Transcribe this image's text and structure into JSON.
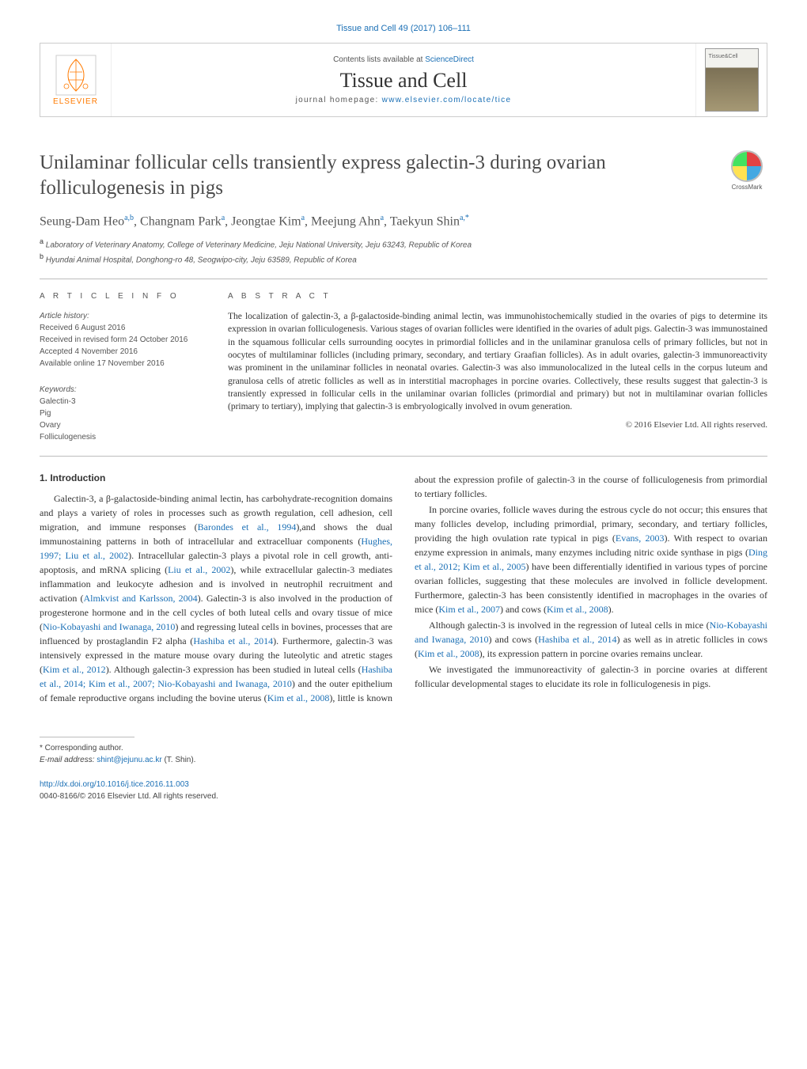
{
  "top_link": "Tissue and Cell 49 (2017) 106–111",
  "header": {
    "publisher_label": "ELSEVIER",
    "contents_prefix": "Contents lists available at ",
    "contents_link": "ScienceDirect",
    "journal_name": "Tissue and Cell",
    "homepage_prefix": "journal homepage: ",
    "homepage_link": "www.elsevier.com/locate/tice",
    "cover_label": "Tissue&Cell"
  },
  "crossmark_label": "CrossMark",
  "title": "Unilaminar follicular cells transiently express galectin-3 during ovarian folliculogenesis in pigs",
  "authors_html": "Seung-Dam Heo<sup>a,b</sup>, Changnam Park<sup>a</sup>, Jeongtae Kim<sup>a</sup>, Meejung Ahn<sup>a</sup>, Taekyun Shin<sup>a,*</sup>",
  "affiliations": {
    "a": "Laboratory of Veterinary Anatomy, College of Veterinary Medicine, Jeju National University, Jeju 63243, Republic of Korea",
    "b": "Hyundai Animal Hospital, Donghong-ro 48, Seogwipo-city, Jeju 63589, Republic of Korea"
  },
  "section_heads": {
    "article_info": "A R T I C L E   I N F O",
    "abstract": "A B S T R A C T",
    "intro": "1.  Introduction"
  },
  "history": {
    "label": "Article history:",
    "received": "Received 6 August 2016",
    "revised": "Received in revised form 24 October 2016",
    "accepted": "Accepted 4 November 2016",
    "online": "Available online 17 November 2016"
  },
  "keywords": {
    "label": "Keywords:",
    "items": [
      "Galectin-3",
      "Pig",
      "Ovary",
      "Folliculogenesis"
    ]
  },
  "abstract": "The localization of galectin-3, a β-galactoside-binding animal lectin, was immunohistochemically studied in the ovaries of pigs to determine its expression in ovarian folliculogenesis. Various stages of ovarian follicles were identified in the ovaries of adult pigs. Galectin-3 was immunostained in the squamous follicular cells surrounding oocytes in primordial follicles and in the unilaminar granulosa cells of primary follicles, but not in oocytes of multilaminar follicles (including primary, secondary, and tertiary Graafian follicles). As in adult ovaries, galectin-3 immunoreactivity was prominent in the unilaminar follicles in neonatal ovaries. Galectin-3 was also immunolocalized in the luteal cells in the corpus luteum and granulosa cells of atretic follicles as well as in interstitial macrophages in porcine ovaries. Collectively, these results suggest that galectin-3 is transiently expressed in follicular cells in the unilaminar ovarian follicles (primordial and primary) but not in multilaminar ovarian follicles (primary to tertiary), implying that galectin-3 is embryologically involved in ovum generation.",
  "copyright": "© 2016 Elsevier Ltd. All rights reserved.",
  "body": {
    "p1_a": "Galectin-3, a β-galactoside-binding animal lectin, has carbohydrate-recognition domains and plays a variety of roles in processes such as growth regulation, cell adhesion, cell migration, and immune responses (",
    "p1_c1": "Barondes et al., 1994",
    "p1_b": "),and shows the dual immunostaining patterns in both of intracellular and extracelluar components (",
    "p1_c2": "Hughes, 1997; Liu et al., 2002",
    "p1_c": "). Intracellular galectin-3 plays a pivotal role in cell growth, anti-apoptosis, and mRNA splicing (",
    "p1_c3": "Liu et al., 2002",
    "p1_d": "), while extracellular galectin-3 mediates inflammation and leukocyte adhesion and is involved in neutrophil recruitment and activation (",
    "p1_c4": "Almkvist and Karlsson, 2004",
    "p1_e": "). Galectin-3 is also involved in the production of progesterone hormone and in the cell cycles of both luteal cells and ovary tissue of mice (",
    "p1_c5": "Nio-Kobayashi and Iwanaga, 2010",
    "p1_f": ") and regressing luteal cells in bovines, processes that are influenced by prostaglandin F2 alpha (",
    "p1_c6": "Hashiba et al., 2014",
    "p1_g": "). Furthermore, galectin-3 was intensively expressed in the mature mouse ovary during the luteolytic and atretic stages (",
    "p1_c7": "Kim et al., 2012",
    "p1_h": "). Although galectin-3 expression has been studied in luteal cells (",
    "p1_c8": "Hashiba et al., 2014; Kim et al., 2007; Nio-Kobayashi and Iwanaga, 2010",
    "p1_i": ") and the outer epithelium of female reproductive organs including the bovine uterus (",
    "p1_c9": "Kim et al., 2008",
    "p1_j": "), little is known about the expression profile of galectin-3 in the course of folliculogenesis from primordial to tertiary follicles.",
    "p2_a": "In porcine ovaries, follicle waves during the estrous cycle do not occur; this ensures that many follicles develop, including primordial, primary, secondary, and tertiary follicles, providing the high ovulation rate typical in pigs (",
    "p2_c1": "Evans, 2003",
    "p2_b": "). With respect to ovarian enzyme expression in animals, many enzymes including nitric oxide synthase in pigs (",
    "p2_c2": "Ding et al., 2012; Kim et al., 2005",
    "p2_c": ") have been differentially identified in various types of porcine ovarian follicles, suggesting that these molecules are involved in follicle development. Furthermore, galectin-3 has been consistently identified in macrophages in the ovaries of mice (",
    "p2_c3": "Kim et al., 2007",
    "p2_d": ") and cows (",
    "p2_c4": "Kim et al., 2008",
    "p2_e": ").",
    "p3_a": "Although galectin-3 is involved in the regression of luteal cells in mice (",
    "p3_c1": "Nio-Kobayashi and Iwanaga, 2010",
    "p3_b": ") and cows (",
    "p3_c2": "Hashiba et al., 2014",
    "p3_c": ") as well as in atretic follicles in cows (",
    "p3_c3": "Kim et al., 2008",
    "p3_d": "), its expression pattern in porcine ovaries remains unclear.",
    "p4": "We investigated the immunoreactivity of galectin-3 in porcine ovaries at different follicular developmental stages to elucidate its role in folliculogenesis in pigs."
  },
  "footer": {
    "corr_label": "* Corresponding author.",
    "email_label": "E-mail address: ",
    "email": "shint@jejunu.ac.kr",
    "email_suffix": " (T. Shin).",
    "doi_link": "http://dx.doi.org/10.1016/j.tice.2016.11.003",
    "doi_line2": "0040-8166/© 2016 Elsevier Ltd. All rights reserved."
  },
  "colors": {
    "link": "#1a6fb5",
    "text": "#333333",
    "muted": "#555555",
    "orange": "#ff7a00",
    "rule": "#bdbdbd"
  }
}
